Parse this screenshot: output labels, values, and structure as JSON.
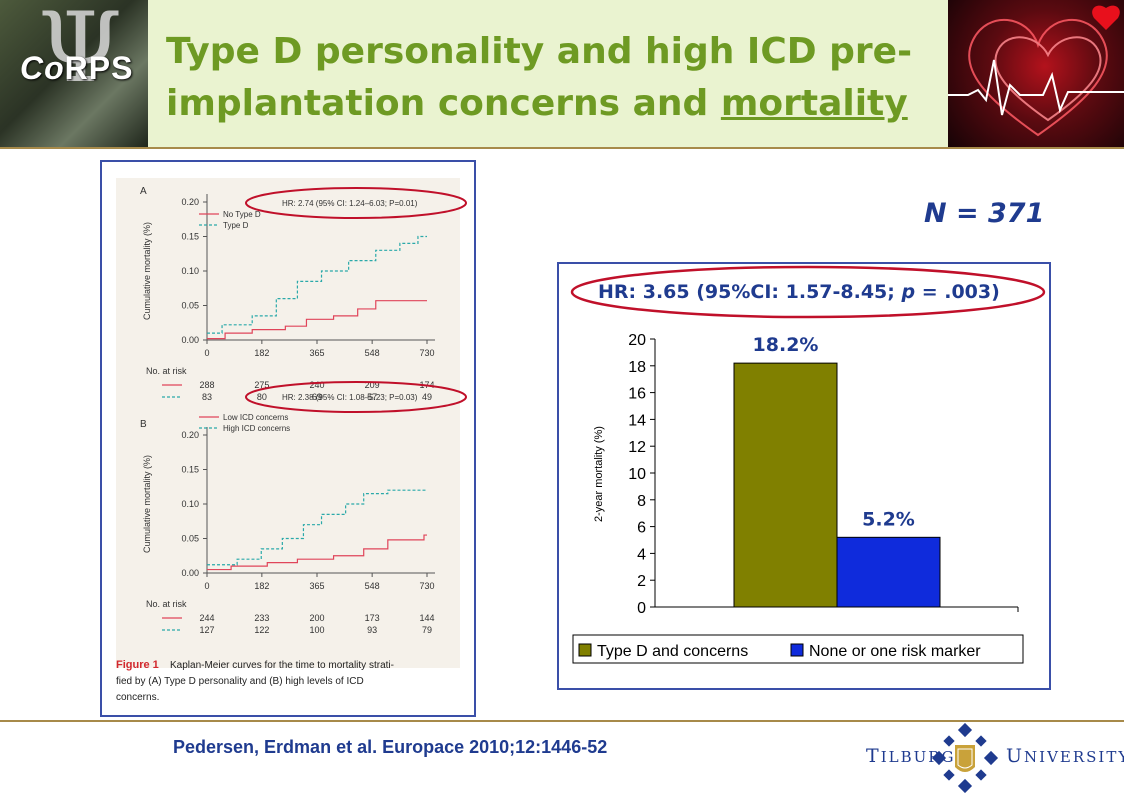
{
  "header": {
    "logo_text_prefix": "Co",
    "logo_text_suffix": "RPS",
    "title_line1": "Type D personality and high ICD pre-",
    "title_line2_prefix": "implantation concerns and ",
    "title_line2_emph": "mortality"
  },
  "figure": {
    "panel_a_label": "A",
    "panel_b_label": "B",
    "panel_a_hr": "HR: 2.74 (95% CI: 1.24–6.03; P=0.01)",
    "panel_b_hr": "HR: 2.38 (95% CI: 1.08–5.23; P=0.03)",
    "y_label": "Cumulative mortality (%)",
    "y_ticks": [
      "0.00",
      "0.05",
      "0.10",
      "0.15",
      "0.20"
    ],
    "x_ticks": [
      "0",
      "182",
      "365",
      "548",
      "730"
    ],
    "at_risk_label": "No. at risk",
    "panel_a_legend": [
      "No Type D",
      "Type D"
    ],
    "panel_b_legend": [
      "Low ICD concerns",
      "High ICD concerns"
    ],
    "panel_a_risk": [
      [
        "288",
        "275",
        "240",
        "209",
        "174"
      ],
      [
        "83",
        "80",
        "69",
        "57",
        "49"
      ]
    ],
    "panel_b_risk": [
      [
        "244",
        "233",
        "200",
        "173",
        "144"
      ],
      [
        "127",
        "122",
        "100",
        "93",
        "79"
      ]
    ],
    "caption_bold": "Figure 1",
    "caption_lines": [
      " Kaplan-Meier curves for the time to mortality strati-",
      "fied by (A) Type D personality and (B) high levels of ICD",
      "concerns."
    ]
  },
  "n_label": "N = 371",
  "hr_parts": {
    "pre": "HR: 3.65 (95%CI: 1.57-8.45; ",
    "p": "p",
    "post": " = .003)"
  },
  "chart_data": {
    "type": "bar",
    "categories": [
      "Type D and concerns",
      "None or one risk marker"
    ],
    "values": [
      18.2,
      5.2
    ],
    "data_labels": [
      "18.2%",
      "5.2%"
    ],
    "ylabel": "2-year mortality (%)",
    "ylim": [
      0,
      20
    ],
    "yticks": [
      0,
      2,
      4,
      6,
      8,
      10,
      12,
      14,
      16,
      18,
      20
    ],
    "colors": [
      "#808000",
      "#0f2bdc"
    ],
    "legend_position": "bottom"
  },
  "citation": "Pedersen, Erdman et al. Europace 2010;12:1446-52",
  "university": {
    "left_initial": "T",
    "left_rest": "ILBURG",
    "right_initial": "U",
    "right_rest": "NIVERSITY"
  },
  "colors": {
    "title_green": "#6e9a23",
    "navy": "#1f3b8f",
    "oval_red": "#c0102a",
    "km_red": "#e0455a",
    "km_teal": "#2aa9a9"
  }
}
